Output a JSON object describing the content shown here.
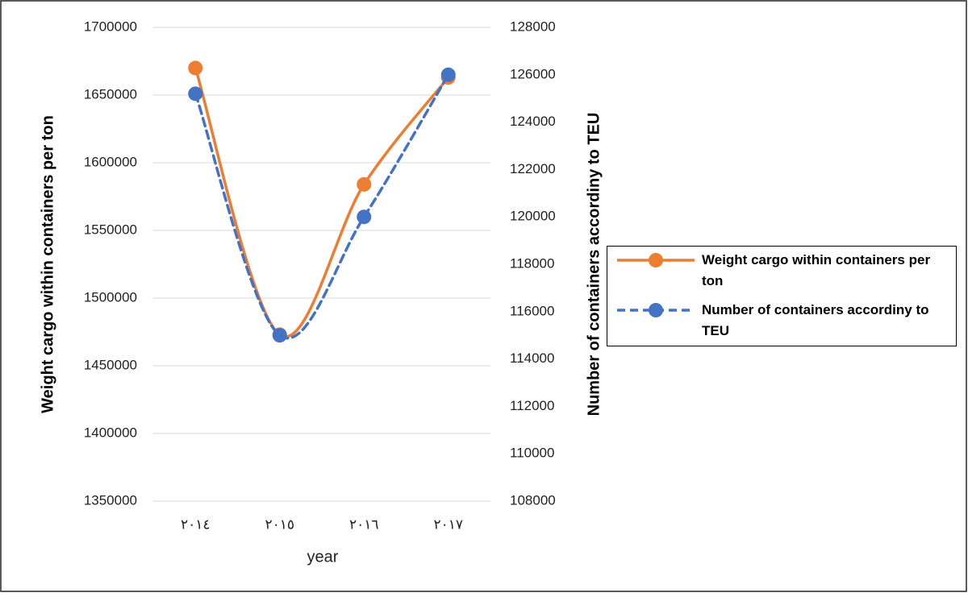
{
  "chart_data": {
    "type": "line",
    "x_label": "year",
    "y_label": "Weight cargo within containers per ton",
    "y2_label": "Number of containers accordiny to TEU",
    "categories": [
      "٢٠١٤",
      "٢٠١٥",
      "٢٠١٦",
      "٢٠١٧"
    ],
    "series": [
      {
        "name": "Weight cargo within containers per ton",
        "color": "#ed7d31",
        "line_style": "solid",
        "values": [
          1670000,
          1473000,
          1584000,
          1663000
        ]
      },
      {
        "name": "Number of containers accordiny to TEU",
        "color": "#4472c4",
        "line_style": "dashed",
        "axis": "y2",
        "values": [
          125200,
          115000,
          120000,
          126000
        ]
      }
    ],
    "ylim": [
      1350000,
      1700000
    ],
    "yticks": [
      1350000,
      1400000,
      1450000,
      1500000,
      1550000,
      1600000,
      1650000,
      1700000
    ],
    "y2lim": [
      108000,
      128000
    ],
    "y2ticks": [
      108000,
      110000,
      112000,
      114000,
      116000,
      118000,
      120000,
      122000,
      124000,
      126000,
      128000
    ],
    "grid": true,
    "smooth": true,
    "legend": "right"
  }
}
